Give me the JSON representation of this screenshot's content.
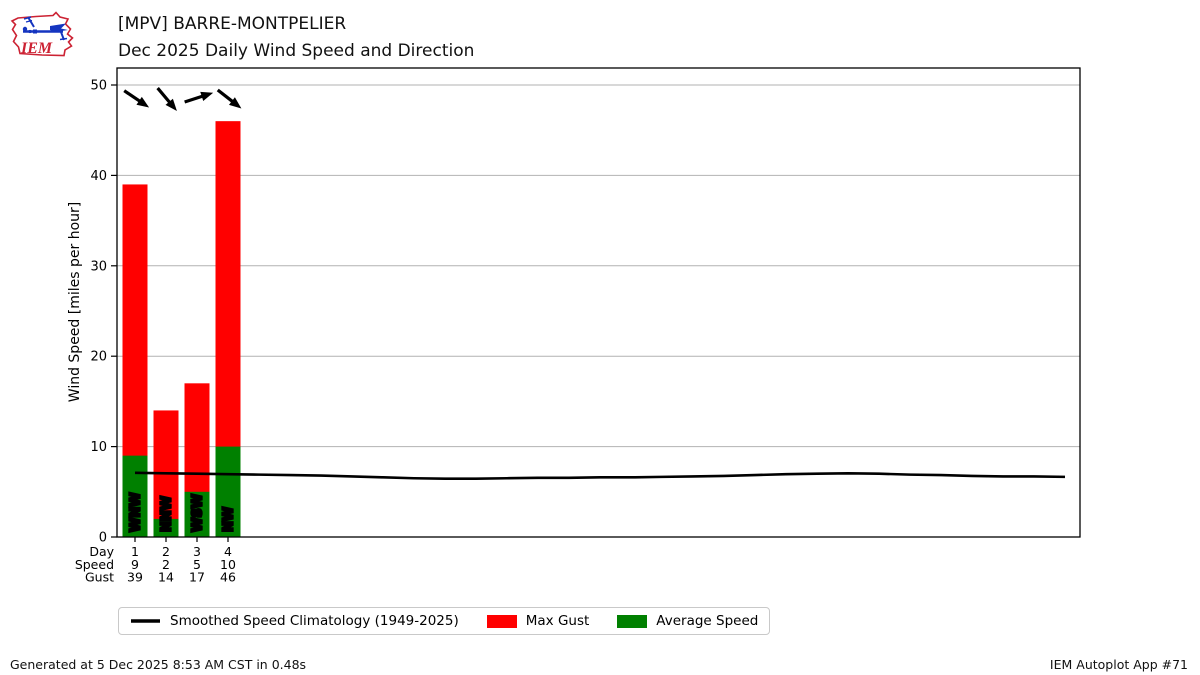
{
  "header": {
    "logo_text": "IEM",
    "title_line1": "[MPV] BARRE-MONTPELIER",
    "title_line2": "Dec 2025 Daily Wind Speed and Direction"
  },
  "chart_data": {
    "type": "bar",
    "station": "[MPV] BARRE-MONTPELIER",
    "title": "Dec 2025 Daily Wind Speed and Direction",
    "xlabel": "",
    "ylabel": "Wind Speed [miles per hour]",
    "ylim": [
      0,
      51.9
    ],
    "yticks": [
      0,
      10,
      20,
      30,
      40,
      50
    ],
    "x_range_days": [
      1,
      31
    ],
    "grid": true,
    "legend_position": "below",
    "categories": [
      1,
      2,
      3,
      4
    ],
    "series": [
      {
        "name": "Max Gust",
        "type": "bar",
        "color": "#ff0000",
        "values": [
          39,
          14,
          17,
          46
        ]
      },
      {
        "name": "Average Speed",
        "type": "bar",
        "color": "#008000",
        "values": [
          9,
          2,
          5,
          10
        ]
      },
      {
        "name": "Smoothed Speed Climatology (1949-2025)",
        "type": "line",
        "color": "#000000",
        "points": [
          [
            1,
            7.1
          ],
          [
            2,
            7.05
          ],
          [
            3,
            7.0
          ],
          [
            4,
            6.95
          ],
          [
            5,
            6.9
          ],
          [
            6,
            6.85
          ],
          [
            7,
            6.8
          ],
          [
            8,
            6.7
          ],
          [
            9,
            6.6
          ],
          [
            10,
            6.5
          ],
          [
            11,
            6.45
          ],
          [
            12,
            6.45
          ],
          [
            13,
            6.5
          ],
          [
            14,
            6.55
          ],
          [
            15,
            6.55
          ],
          [
            16,
            6.6
          ],
          [
            17,
            6.6
          ],
          [
            18,
            6.65
          ],
          [
            19,
            6.7
          ],
          [
            20,
            6.75
          ],
          [
            21,
            6.85
          ],
          [
            22,
            6.95
          ],
          [
            23,
            7.0
          ],
          [
            24,
            7.05
          ],
          [
            25,
            7.0
          ],
          [
            26,
            6.9
          ],
          [
            27,
            6.85
          ],
          [
            28,
            6.75
          ],
          [
            29,
            6.7
          ],
          [
            30,
            6.7
          ],
          [
            31,
            6.65
          ]
        ]
      }
    ],
    "wind_directions": [
      "WNW",
      "NNW",
      "WSW",
      "NW"
    ],
    "wind_arrow_angles_deg": [
      34,
      50,
      -18,
      38
    ],
    "x_table": {
      "row_labels": [
        "Day",
        "Speed",
        "Gust"
      ],
      "rows": [
        [
          "1",
          "2",
          "3",
          "4"
        ],
        [
          "9",
          "2",
          "5",
          "10"
        ],
        [
          "39",
          "14",
          "17",
          "46"
        ]
      ]
    }
  },
  "legend": {
    "items": [
      {
        "label": "Smoothed Speed Climatology (1949-2025)",
        "swatch": "line",
        "color": "#000000"
      },
      {
        "label": "Max Gust",
        "swatch": "rect",
        "color": "#ff0000"
      },
      {
        "label": "Average Speed",
        "swatch": "rect",
        "color": "#008000"
      }
    ]
  },
  "footer": {
    "left": "Generated at 5 Dec 2025 8:53 AM CST in 0.48s",
    "right": "IEM Autoplot App #71"
  },
  "colors": {
    "max_gust": "#ff0000",
    "avg_speed": "#008000",
    "climatology": "#000000",
    "grid": "#b2b2b2",
    "axis": "#000000",
    "logo_red": "#cc2233",
    "logo_blue": "#1535c0"
  }
}
